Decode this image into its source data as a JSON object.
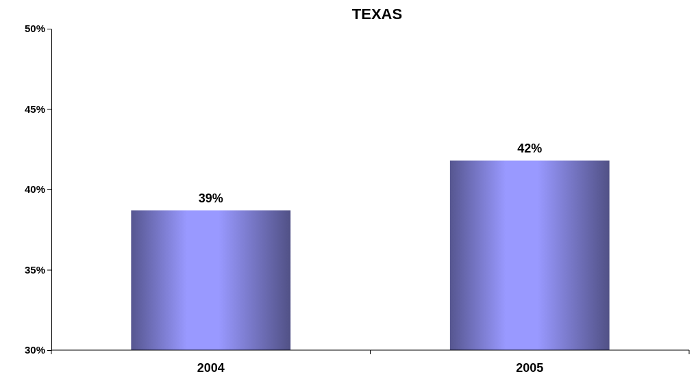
{
  "chart_data": {
    "type": "bar",
    "title": "TEXAS",
    "categories": [
      "2004",
      "2005"
    ],
    "values": [
      38.7,
      41.8
    ],
    "value_labels": [
      "39%",
      "42%"
    ],
    "color": "#9999ff",
    "ylim": [
      30,
      50
    ],
    "yticks": [
      {
        "value": 30,
        "label": "30%"
      },
      {
        "value": 35,
        "label": "35%"
      },
      {
        "value": 40,
        "label": "40%"
      },
      {
        "value": 45,
        "label": "45%"
      },
      {
        "value": 50,
        "label": "50%"
      }
    ],
    "grid": false
  }
}
